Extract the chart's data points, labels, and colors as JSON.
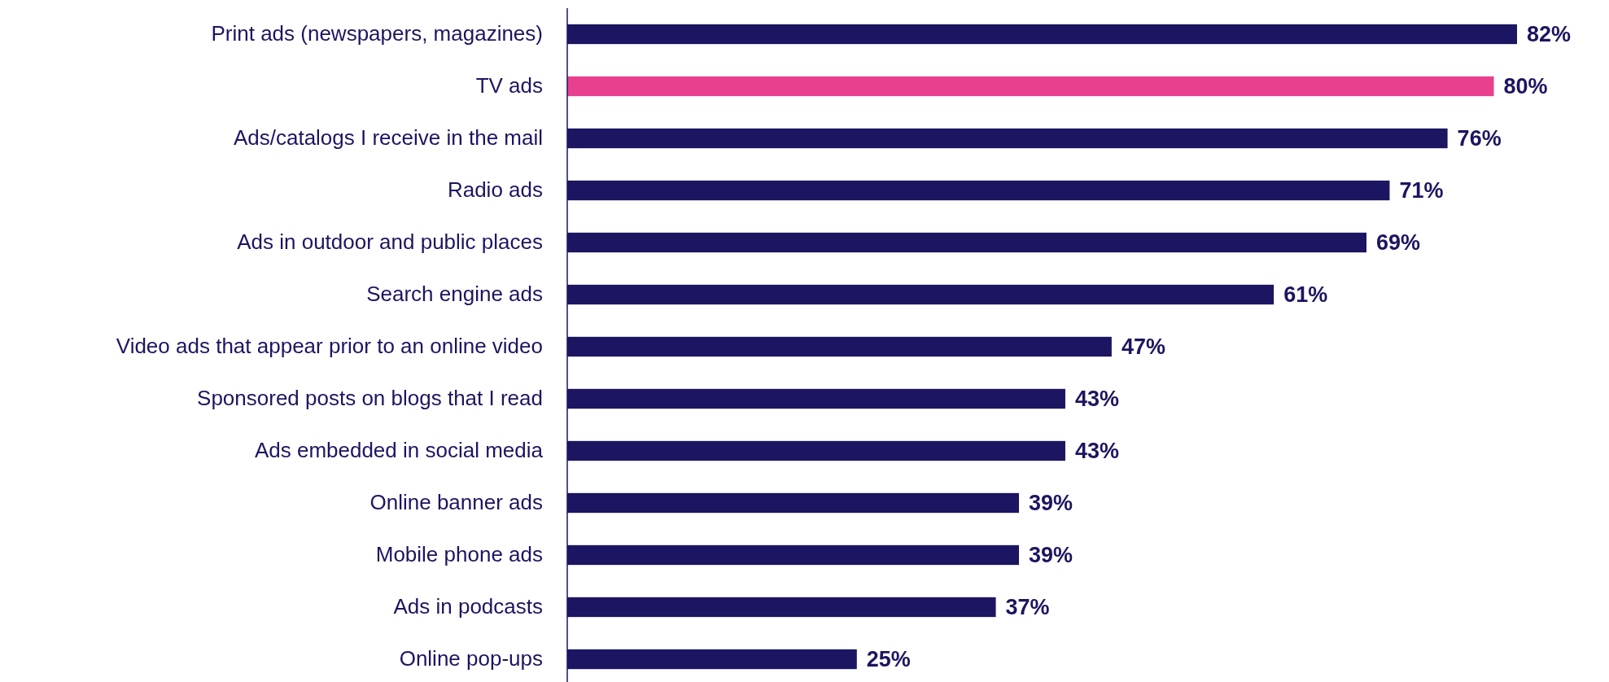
{
  "chart_data": {
    "type": "bar",
    "orientation": "horizontal",
    "categories": [
      "Print ads (newspapers, magazines)",
      "TV ads",
      "Ads/catalogs I receive in the mail",
      "Radio ads",
      "Ads in outdoor and public places",
      "Search engine ads",
      "Video ads that appear prior to an online video",
      "Sponsored posts on blogs that I read",
      "Ads embedded in social media",
      "Online banner ads",
      "Mobile phone ads",
      "Ads in podcasts",
      "Online pop-ups"
    ],
    "values": [
      82,
      80,
      76,
      71,
      69,
      61,
      47,
      43,
      43,
      39,
      39,
      37,
      25
    ],
    "value_labels": [
      "82%",
      "80%",
      "76%",
      "71%",
      "69%",
      "61%",
      "47%",
      "43%",
      "43%",
      "39%",
      "39%",
      "37%",
      "25%"
    ],
    "colors": [
      "#1c1561",
      "#e8408f",
      "#1c1561",
      "#1c1561",
      "#1c1561",
      "#1c1561",
      "#1c1561",
      "#1c1561",
      "#1c1561",
      "#1c1561",
      "#1c1561",
      "#1c1561",
      "#1c1561"
    ]
  }
}
